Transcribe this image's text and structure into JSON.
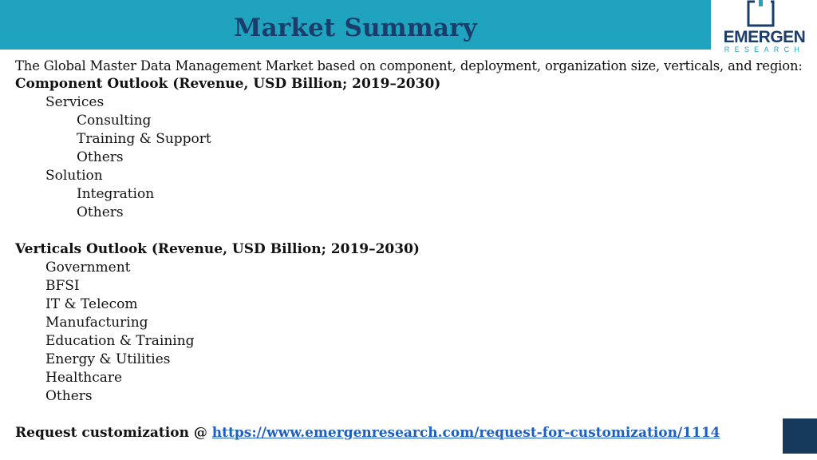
{
  "header": {
    "title": "Market Summary",
    "bar_color": "#20a3bf",
    "title_color": "#1a3d6b"
  },
  "logo": {
    "name": "EMERGEN",
    "sub": "RESEARCH"
  },
  "intro": "The Global Master Data Management Market based on component, deployment, organization size, verticals, and region:",
  "component_outlook": {
    "heading": "Component Outlook (Revenue, USD Billion; 2019–2030)",
    "services": {
      "label": "Services",
      "items": [
        "Consulting",
        "Training & Support",
        "Others"
      ]
    },
    "solution": {
      "label": "Solution",
      "items": [
        "Integration",
        "Others"
      ]
    }
  },
  "verticals_outlook": {
    "heading": "Verticals Outlook (Revenue, USD Billion; 2019–2030)",
    "items": [
      "Government",
      "BFSI",
      "IT & Telecom",
      "Manufacturing",
      "Education & Training",
      "Energy & Utilities",
      "Healthcare",
      "Others"
    ]
  },
  "request": {
    "label": "Request customization @ ",
    "link": "https://www.emergenresearch.com/request-for-customization/1114",
    "link_color": "#1f5fbf"
  }
}
